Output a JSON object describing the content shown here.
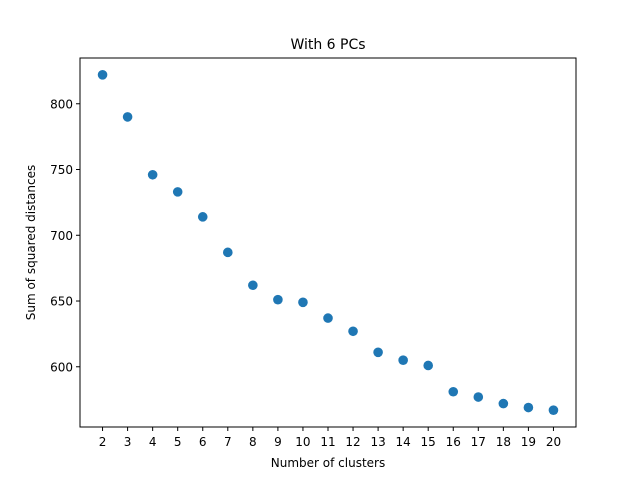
{
  "chart_data": {
    "type": "scatter",
    "title": "With 6 PCs",
    "xlabel": "Number of clusters",
    "ylabel": "Sum of squared distances",
    "x": [
      2,
      3,
      4,
      5,
      6,
      7,
      8,
      9,
      10,
      11,
      12,
      13,
      14,
      15,
      16,
      17,
      18,
      19,
      20
    ],
    "y": [
      822,
      790,
      746,
      733,
      714,
      687,
      662,
      651,
      649,
      637,
      627,
      611,
      605,
      601,
      581,
      577,
      572,
      569,
      567
    ],
    "xticks": [
      "2",
      "3",
      "4",
      "5",
      "6",
      "7",
      "8",
      "9",
      "10",
      "11",
      "12",
      "13",
      "14",
      "15",
      "16",
      "17",
      "18",
      "19",
      "20"
    ],
    "yticks": [
      "600",
      "650",
      "700",
      "750",
      "800"
    ],
    "xlim": [
      1.1,
      20.9
    ],
    "ylim": [
      554.2,
      834.8
    ],
    "marker_color": "#1f77b4",
    "grid": false
  }
}
